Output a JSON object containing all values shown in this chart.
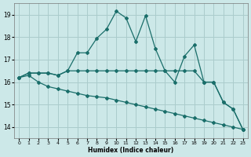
{
  "xlabel": "Humidex (Indice chaleur)",
  "bg_color": "#cce8e8",
  "grid_color": "#aacccc",
  "line_color": "#1a6e6a",
  "xlim": [
    -0.5,
    23.5
  ],
  "ylim": [
    13.5,
    19.5
  ],
  "xtick_labels": [
    "0",
    "1",
    "2",
    "3",
    "4",
    "5",
    "6",
    "7",
    "8",
    "9",
    "10",
    "11",
    "12",
    "13",
    "14",
    "15",
    "16",
    "17",
    "18",
    "19",
    "20",
    "21",
    "22",
    "23"
  ],
  "yticks": [
    14,
    15,
    16,
    17,
    18,
    19
  ],
  "series_jagged_x": [
    0,
    1,
    2,
    3,
    4,
    5,
    6,
    7,
    8,
    9,
    10,
    11,
    12,
    13,
    14,
    15,
    16,
    17,
    18,
    19,
    20,
    21,
    22,
    23
  ],
  "series_jagged_y": [
    16.2,
    16.4,
    16.4,
    16.4,
    16.3,
    16.5,
    17.3,
    17.3,
    17.95,
    18.35,
    19.15,
    18.85,
    17.8,
    18.95,
    17.5,
    16.5,
    16.0,
    17.15,
    17.65,
    16.0,
    16.0,
    15.1,
    14.8,
    13.9
  ],
  "series_mid_x": [
    0,
    1,
    2,
    3,
    4,
    5,
    6,
    7,
    8,
    9,
    10,
    11,
    12,
    13,
    14,
    15,
    16,
    17,
    18,
    19,
    20,
    21,
    22,
    23
  ],
  "series_mid_y": [
    16.2,
    16.4,
    16.4,
    16.4,
    16.3,
    16.5,
    16.5,
    16.5,
    16.5,
    16.5,
    16.5,
    16.5,
    16.5,
    16.5,
    16.5,
    16.5,
    16.5,
    16.5,
    16.5,
    16.0,
    16.0,
    15.1,
    14.8,
    13.9
  ],
  "series_low_x": [
    0,
    1,
    2,
    3,
    4,
    5,
    6,
    7,
    8,
    9,
    10,
    11,
    12,
    13,
    14,
    15,
    16,
    17,
    18,
    19,
    20,
    21,
    22,
    23
  ],
  "series_low_y": [
    16.2,
    16.3,
    16.0,
    15.8,
    15.7,
    15.6,
    15.5,
    15.4,
    15.35,
    15.3,
    15.2,
    15.1,
    15.0,
    14.9,
    14.8,
    14.7,
    14.6,
    14.5,
    14.4,
    14.3,
    14.2,
    14.1,
    14.0,
    13.9
  ]
}
